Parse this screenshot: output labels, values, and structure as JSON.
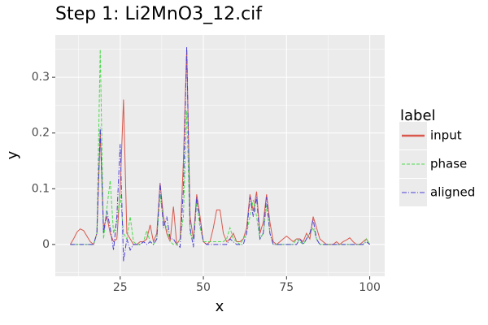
{
  "chart_data": {
    "type": "line",
    "title": "Step 1: Li2MnO3_12.cif",
    "x_label": "x",
    "y_label": "y",
    "legend_title": "label",
    "x": [
      10,
      11,
      12,
      13,
      14,
      15,
      16,
      17,
      18,
      19,
      20,
      21,
      22,
      23,
      24,
      25,
      26,
      27,
      28,
      29,
      30,
      31,
      32,
      33,
      34,
      35,
      36,
      37,
      38,
      39,
      40,
      41,
      42,
      43,
      44,
      45,
      46,
      47,
      48,
      49,
      50,
      51,
      52,
      53,
      54,
      55,
      56,
      57,
      58,
      59,
      60,
      61,
      62,
      63,
      64,
      65,
      66,
      67,
      68,
      69,
      70,
      71,
      72,
      73,
      74,
      75,
      76,
      77,
      78,
      79,
      80,
      81,
      82,
      83,
      84,
      85,
      86,
      87,
      88,
      89,
      90,
      91,
      92,
      93,
      94,
      95,
      96,
      97,
      98,
      99,
      100
    ],
    "series": [
      {
        "name": "input",
        "color": "#d9574c",
        "dash": "none",
        "values": [
          0,
          0.01,
          0.022,
          0.028,
          0.025,
          0.015,
          0.005,
          0,
          0.02,
          0.2,
          0.03,
          0.05,
          0.02,
          0.005,
          0.01,
          0.1,
          0.26,
          0.02,
          0.01,
          0,
          0,
          0.005,
          0.005,
          0.01,
          0.035,
          0.005,
          0.02,
          0.11,
          0.05,
          0.02,
          0.005,
          0.068,
          0,
          0.01,
          0.15,
          0.35,
          0.05,
          0.01,
          0.09,
          0.05,
          0.005,
          0,
          0.005,
          0.03,
          0.062,
          0.062,
          0.02,
          0.005,
          0.01,
          0.02,
          0.005,
          0.005,
          0.01,
          0.03,
          0.09,
          0.06,
          0.095,
          0.02,
          0.04,
          0.09,
          0.04,
          0.005,
          0,
          0.005,
          0.01,
          0.015,
          0.01,
          0.005,
          0.01,
          0.01,
          0.005,
          0.02,
          0.01,
          0.05,
          0.03,
          0.01,
          0.005,
          0,
          0,
          0,
          0.005,
          0,
          0.005,
          0.008,
          0.012,
          0.005,
          0,
          0,
          0.005,
          0.01,
          0
        ]
      },
      {
        "name": "phase",
        "color": "#4fd94f",
        "dash": "4 2",
        "values": [
          0,
          0,
          0,
          0,
          0,
          0,
          0,
          0,
          0.02,
          0.35,
          0.01,
          0.065,
          0.115,
          0.02,
          0.04,
          0.09,
          0.02,
          0.01,
          0.05,
          0.005,
          0,
          0,
          0.005,
          0.025,
          0.005,
          0,
          0.01,
          0.09,
          0.04,
          0.03,
          0.005,
          0,
          0,
          0.01,
          0.05,
          0.24,
          0.02,
          0.01,
          0.075,
          0.03,
          0.005,
          0.005,
          0.005,
          0.005,
          0.005,
          0.005,
          0.005,
          0.01,
          0.03,
          0.01,
          0.005,
          0,
          0.01,
          0.02,
          0.05,
          0.08,
          0.05,
          0.01,
          0.02,
          0.07,
          0.02,
          0,
          0,
          0,
          0,
          0,
          0,
          0,
          0.01,
          0.005,
          0,
          0.01,
          0.02,
          0.03,
          0.01,
          0,
          0,
          0,
          0,
          0,
          0,
          0,
          0,
          0,
          0,
          0,
          0,
          0,
          0,
          0.01,
          0
        ]
      },
      {
        "name": "aligned",
        "color": "#4a3fd4",
        "dash": "6 2 1 2",
        "values": [
          0,
          0,
          0,
          0,
          0,
          0,
          0,
          0,
          0.02,
          0.21,
          0.02,
          0.06,
          0.03,
          -0.01,
          0.05,
          0.18,
          -0.03,
          0.01,
          -0.01,
          0,
          0,
          0,
          0.005,
          0,
          0.005,
          0,
          0.01,
          0.11,
          0.03,
          0.05,
          0.01,
          0.01,
          0,
          -0.005,
          0.1,
          0.355,
          0.03,
          -0.005,
          0.085,
          0.04,
          0.005,
          0,
          0,
          0,
          0,
          0,
          0,
          0,
          0.01,
          0.005,
          0,
          0,
          0,
          0.02,
          0.085,
          0.05,
          0.085,
          0.01,
          0.02,
          0.085,
          0.02,
          0,
          0,
          0,
          0,
          0,
          0,
          0,
          0,
          0.01,
          0,
          0.01,
          0.02,
          0.045,
          0.01,
          0,
          0,
          0,
          0,
          0,
          0,
          0,
          0,
          0,
          0,
          0,
          0,
          0,
          0,
          0.005,
          0
        ]
      }
    ],
    "xlim": [
      5.5,
      104.5
    ],
    "ylim": [
      -0.057,
      0.376
    ],
    "xticks": [
      25,
      50,
      75,
      100
    ],
    "yticks": [
      0,
      0.1,
      0.2,
      0.3
    ],
    "x_minor_ticks": [
      12.5,
      37.5,
      62.5,
      87.5
    ],
    "y_minor_ticks": [
      -0.05,
      0.05,
      0.15,
      0.25,
      0.35
    ],
    "grid": true
  }
}
